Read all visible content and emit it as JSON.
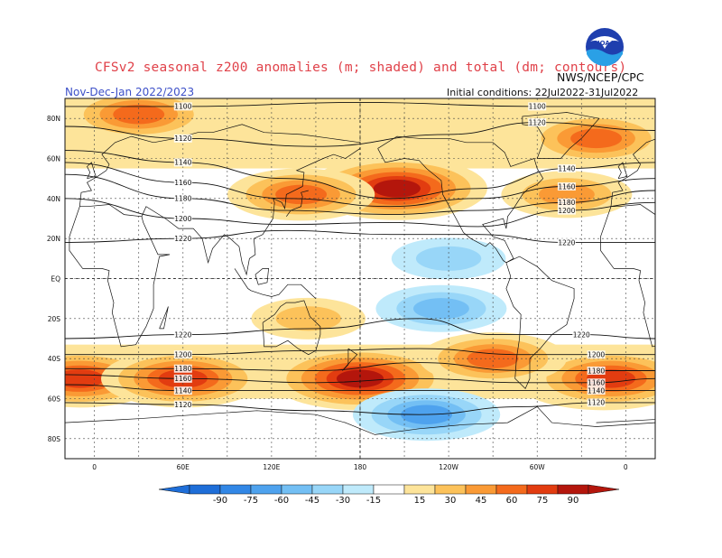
{
  "header": {
    "title": "CFSv2 seasonal z200 anomalies (m; shaded) and total (dm; contours)",
    "period": "Nov-Dec-Jan 2022/2023",
    "initial_conditions": "Initial conditions: 22Jul2022-31Jul2022",
    "agency": "NWS/NCEP/CPC",
    "logo_text": "NOAA"
  },
  "colors": {
    "neg90": "#1e6ed8",
    "neg75": "#3287e6",
    "neg60": "#4ea2ee",
    "neg45": "#73bff4",
    "neg30": "#98d6f8",
    "neg15": "#bfeafb",
    "neutral": "#ffffff",
    "pos15": "#fde49a",
    "pos30": "#fcc25a",
    "pos45": "#fa9a35",
    "pos60": "#f46a1c",
    "pos75": "#e23c10",
    "pos90": "#b4160c"
  },
  "map": {
    "lat_labels": [
      "80N",
      "60N",
      "40N",
      "20N",
      "EQ",
      "20S",
      "40S",
      "60S",
      "80S"
    ],
    "lat_values": [
      80,
      60,
      40,
      20,
      0,
      -20,
      -40,
      -60,
      -80
    ],
    "lon_labels": [
      "0",
      "60E",
      "120E",
      "180",
      "120W",
      "60W",
      "0"
    ],
    "lon_values": [
      0,
      60,
      120,
      180,
      240,
      300,
      360
    ],
    "lon_range": [
      -20,
      380
    ],
    "lat_range": [
      -90,
      90
    ],
    "anomalies": [
      {
        "lon": 205,
        "lat": 45,
        "value": 90
      },
      {
        "lon": 140,
        "lat": 42,
        "value": 60
      },
      {
        "lon": 320,
        "lat": 42,
        "value": 45
      },
      {
        "lon": 30,
        "lat": 82,
        "value": 60
      },
      {
        "lon": 340,
        "lat": 70,
        "value": 60
      },
      {
        "lon": 180,
        "lat": -50,
        "value": 90
      },
      {
        "lon": 345,
        "lat": -50,
        "value": 90
      },
      {
        "lon": -10,
        "lat": -50,
        "value": 75
      },
      {
        "lon": 60,
        "lat": -50,
        "value": 75
      },
      {
        "lon": 270,
        "lat": -40,
        "value": 60
      },
      {
        "lon": 225,
        "lat": -68,
        "value": -60
      },
      {
        "lon": 240,
        "lat": 10,
        "value": -30
      },
      {
        "lon": 235,
        "lat": -15,
        "value": -45
      },
      {
        "lon": 145,
        "lat": -20,
        "value": 30
      }
    ],
    "contours": [
      {
        "label": "1100",
        "lat_at_lon": [
          [
            -20,
            86
          ],
          [
            60,
            86
          ],
          [
            180,
            88
          ],
          [
            300,
            86
          ],
          [
            380,
            86
          ]
        ]
      },
      {
        "label": "1120",
        "lat_at_lon": [
          [
            -20,
            76
          ],
          [
            60,
            70
          ],
          [
            150,
            66
          ],
          [
            240,
            72
          ],
          [
            300,
            78
          ],
          [
            380,
            74
          ]
        ]
      },
      {
        "label": "1140",
        "lat_at_lon": [
          [
            -20,
            64
          ],
          [
            60,
            58
          ],
          [
            130,
            50
          ],
          [
            200,
            40
          ],
          [
            260,
            45
          ],
          [
            320,
            55
          ],
          [
            380,
            58
          ]
        ]
      },
      {
        "label": "1160",
        "lat_at_lon": [
          [
            -20,
            58
          ],
          [
            60,
            48
          ],
          [
            130,
            40
          ],
          [
            200,
            36
          ],
          [
            260,
            40
          ],
          [
            320,
            46
          ],
          [
            380,
            50
          ]
        ]
      },
      {
        "label": "1180",
        "lat_at_lon": [
          [
            -20,
            52
          ],
          [
            60,
            40
          ],
          [
            130,
            34
          ],
          [
            200,
            32
          ],
          [
            260,
            34
          ],
          [
            320,
            38
          ],
          [
            380,
            44
          ]
        ]
      },
      {
        "label": "1200",
        "lat_at_lon": [
          [
            -20,
            40
          ],
          [
            60,
            30
          ],
          [
            130,
            27
          ],
          [
            200,
            28
          ],
          [
            260,
            26
          ],
          [
            320,
            34
          ],
          [
            380,
            38
          ]
        ]
      },
      {
        "label": "1220",
        "lat_at_lon": [
          [
            -20,
            18
          ],
          [
            60,
            20
          ],
          [
            130,
            24
          ],
          [
            200,
            22
          ],
          [
            260,
            22
          ],
          [
            320,
            18
          ],
          [
            380,
            18
          ]
        ]
      },
      {
        "label": "1220",
        "lat_at_lon": [
          [
            -20,
            -30
          ],
          [
            60,
            -28
          ],
          [
            150,
            -25
          ],
          [
            220,
            -20
          ],
          [
            270,
            -28
          ],
          [
            330,
            -28
          ],
          [
            380,
            -30
          ]
        ]
      },
      {
        "label": "1200",
        "lat_at_lon": [
          [
            -20,
            -38
          ],
          [
            60,
            -38
          ],
          [
            150,
            -36
          ],
          [
            220,
            -35
          ],
          [
            290,
            -38
          ],
          [
            340,
            -38
          ],
          [
            380,
            -38
          ]
        ]
      },
      {
        "label": "1180",
        "lat_at_lon": [
          [
            -20,
            -45
          ],
          [
            60,
            -45
          ],
          [
            150,
            -46
          ],
          [
            220,
            -42
          ],
          [
            290,
            -46
          ],
          [
            340,
            -46
          ],
          [
            380,
            -46
          ]
        ]
      },
      {
        "label": "1160",
        "lat_at_lon": [
          [
            -20,
            -48
          ],
          [
            60,
            -50
          ],
          [
            150,
            -52
          ],
          [
            220,
            -50
          ],
          [
            290,
            -52
          ],
          [
            340,
            -52
          ],
          [
            380,
            -50
          ]
        ]
      },
      {
        "label": "1140",
        "lat_at_lon": [
          [
            -20,
            -53
          ],
          [
            60,
            -56
          ],
          [
            150,
            -56
          ],
          [
            220,
            -56
          ],
          [
            290,
            -56
          ],
          [
            340,
            -56
          ],
          [
            380,
            -56
          ]
        ]
      },
      {
        "label": "1120",
        "lat_at_lon": [
          [
            -20,
            -62
          ],
          [
            60,
            -63
          ],
          [
            150,
            -66
          ],
          [
            220,
            -68
          ],
          [
            290,
            -64
          ],
          [
            340,
            -62
          ],
          [
            380,
            -62
          ]
        ]
      }
    ]
  },
  "colorbar": {
    "labels": [
      "-90",
      "-75",
      "-60",
      "-45",
      "-30",
      "-15",
      "15",
      "30",
      "45",
      "60",
      "75",
      "90"
    ]
  }
}
